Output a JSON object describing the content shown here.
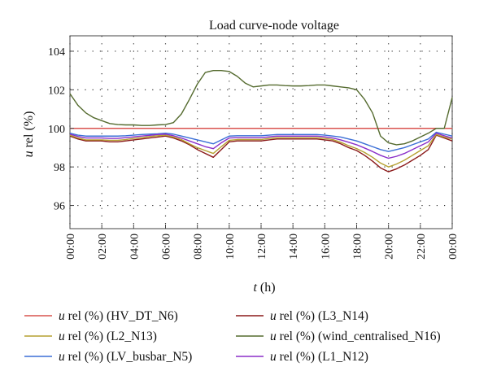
{
  "chart_data": {
    "type": "line",
    "title": "Load curve-node voltage",
    "xlabel_italic": "t",
    "xlabel_rest": " (h)",
    "ylabel_italic": "u",
    "ylabel_rest": " rel (%)",
    "ylim": [
      94.8,
      104.8
    ],
    "xlim": [
      0,
      24
    ],
    "y_ticks": [
      96,
      98,
      100,
      102,
      104
    ],
    "x_ticks": [
      "00:00",
      "02:00",
      "04:00",
      "06:00",
      "08:00",
      "10:00",
      "12:00",
      "14:00",
      "16:00",
      "18:00",
      "20:00",
      "22:00",
      "00:00"
    ],
    "grid": "dotted",
    "legend_placement": "bottom",
    "x": [
      0,
      0.5,
      1,
      1.5,
      2,
      2.5,
      3,
      3.5,
      4,
      4.5,
      5,
      5.5,
      6,
      6.5,
      7,
      7.5,
      8,
      8.5,
      9,
      9.5,
      10,
      10.5,
      11,
      11.5,
      12,
      12.5,
      13,
      13.5,
      14,
      14.5,
      15,
      15.5,
      16,
      16.5,
      17,
      17.5,
      18,
      18.5,
      19,
      19.5,
      20,
      20.5,
      21,
      21.5,
      22,
      22.5,
      23,
      23.5,
      24
    ],
    "series": [
      {
        "name": "HV_DT_N6",
        "color": "#d9534f",
        "legend_prefix_italic": "u",
        "legend_prefix_rest": " rel (%) ",
        "legend_label": "(HV_DT_N6)",
        "values": [
          100,
          100,
          100,
          100,
          100,
          100,
          100,
          100,
          100,
          100,
          100,
          100,
          100,
          100,
          100,
          100,
          100,
          100,
          100,
          100,
          100,
          100,
          100,
          100,
          100,
          100,
          100,
          100,
          100,
          100,
          100,
          100,
          100,
          100,
          100,
          100,
          100,
          100,
          100,
          100,
          100,
          100,
          100,
          100,
          100,
          100,
          100,
          100,
          100
        ]
      },
      {
        "name": "L3_N14",
        "color": "#8b1a1a",
        "legend_prefix_italic": "u",
        "legend_prefix_rest": " rel (%) ",
        "legend_label": "(L3_N14)",
        "values": [
          99.6,
          99.45,
          99.35,
          99.35,
          99.35,
          99.3,
          99.3,
          99.35,
          99.4,
          99.45,
          99.5,
          99.55,
          99.6,
          99.5,
          99.35,
          99.15,
          98.9,
          98.7,
          98.5,
          98.9,
          99.3,
          99.35,
          99.35,
          99.35,
          99.35,
          99.4,
          99.45,
          99.45,
          99.45,
          99.45,
          99.45,
          99.45,
          99.4,
          99.35,
          99.2,
          99.0,
          98.85,
          98.6,
          98.3,
          97.95,
          97.75,
          97.9,
          98.1,
          98.35,
          98.6,
          98.9,
          99.65,
          99.5,
          99.35
        ]
      },
      {
        "name": "L2_N13",
        "color": "#b5a030",
        "legend_prefix_italic": "u",
        "legend_prefix_rest": " rel (%) ",
        "legend_label": "(L2_N13)",
        "values": [
          99.65,
          99.5,
          99.4,
          99.4,
          99.4,
          99.38,
          99.38,
          99.42,
          99.48,
          99.52,
          99.58,
          99.62,
          99.65,
          99.55,
          99.42,
          99.2,
          99.0,
          98.85,
          98.7,
          99.05,
          99.38,
          99.42,
          99.42,
          99.42,
          99.42,
          99.48,
          99.52,
          99.52,
          99.52,
          99.52,
          99.52,
          99.52,
          99.48,
          99.42,
          99.28,
          99.1,
          98.95,
          98.75,
          98.5,
          98.2,
          98.0,
          98.15,
          98.35,
          98.6,
          98.85,
          99.1,
          99.68,
          99.55,
          99.45
        ]
      },
      {
        "name": "wind_centralised_N16",
        "color": "#556b2f",
        "legend_prefix_italic": "u",
        "legend_prefix_rest": " rel (%) ",
        "legend_label": "(wind_centralised_N16)",
        "values": [
          101.8,
          101.2,
          100.8,
          100.55,
          100.4,
          100.25,
          100.2,
          100.18,
          100.18,
          100.15,
          100.15,
          100.18,
          100.2,
          100.3,
          100.75,
          101.5,
          102.3,
          102.9,
          103.0,
          103.0,
          102.95,
          102.7,
          102.35,
          102.15,
          102.2,
          102.25,
          102.25,
          102.22,
          102.2,
          102.2,
          102.22,
          102.25,
          102.25,
          102.2,
          102.15,
          102.1,
          102.0,
          101.5,
          100.8,
          99.6,
          99.25,
          99.15,
          99.2,
          99.35,
          99.55,
          99.75,
          100.0,
          100.0,
          101.6
        ]
      },
      {
        "name": "LV_busbar_N5",
        "color": "#3b6fd6",
        "legend_prefix_italic": "u",
        "legend_prefix_rest": " rel (%) ",
        "legend_label": "(LV_busbar_N5)",
        "values": [
          99.75,
          99.65,
          99.6,
          99.6,
          99.6,
          99.6,
          99.6,
          99.62,
          99.65,
          99.68,
          99.7,
          99.72,
          99.75,
          99.7,
          99.6,
          99.5,
          99.4,
          99.3,
          99.2,
          99.4,
          99.6,
          99.62,
          99.62,
          99.62,
          99.62,
          99.65,
          99.68,
          99.68,
          99.68,
          99.68,
          99.68,
          99.68,
          99.65,
          99.6,
          99.55,
          99.45,
          99.35,
          99.2,
          99.05,
          98.9,
          98.8,
          98.9,
          99.0,
          99.15,
          99.3,
          99.45,
          99.8,
          99.7,
          99.6
        ]
      },
      {
        "name": "L1_N12",
        "color": "#8b2fc9",
        "legend_prefix_italic": "u",
        "legend_prefix_rest": " rel (%) ",
        "legend_label": "(L1_N12)",
        "values": [
          99.7,
          99.58,
          99.5,
          99.5,
          99.5,
          99.48,
          99.48,
          99.52,
          99.56,
          99.6,
          99.64,
          99.68,
          99.7,
          99.62,
          99.5,
          99.35,
          99.2,
          99.05,
          98.95,
          99.25,
          99.5,
          99.52,
          99.52,
          99.52,
          99.52,
          99.56,
          99.6,
          99.6,
          99.6,
          99.6,
          99.6,
          99.6,
          99.56,
          99.5,
          99.4,
          99.28,
          99.15,
          98.98,
          98.8,
          98.6,
          98.45,
          98.55,
          98.7,
          98.9,
          99.1,
          99.3,
          99.75,
          99.62,
          99.5
        ]
      }
    ]
  }
}
